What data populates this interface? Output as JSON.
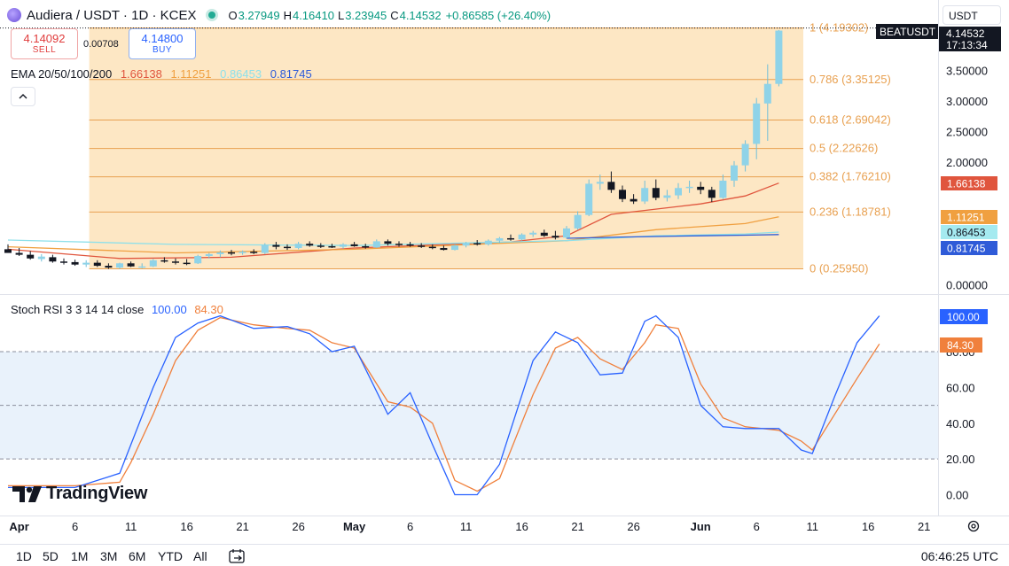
{
  "header": {
    "symbol_title": "Audiera / USDT · 1D · KCEX",
    "ohlc": [
      {
        "key": "O",
        "value": "3.27949"
      },
      {
        "key": "H",
        "value": "4.16410"
      },
      {
        "key": "L",
        "value": "3.23945"
      },
      {
        "key": "C",
        "value": "4.14532"
      }
    ],
    "change": "+0.86585 (+26.40%)",
    "currency": "USDT",
    "up_color": "#089981"
  },
  "trade": {
    "sell_price": "4.14092",
    "sell_label": "SELL",
    "spread": "0.00708",
    "buy_price": "4.14800",
    "buy_label": "BUY"
  },
  "ema_legend": {
    "label": "EMA 20/50/100/200",
    "values": [
      "1.66138",
      "1.11251",
      "0.86453",
      "0.81745"
    ],
    "colors": [
      "#e0553d",
      "#f0a040",
      "#8ee0ea",
      "#2f5bd8"
    ]
  },
  "price_axis": {
    "ticks": [
      "3.50000",
      "3.00000",
      "2.50000",
      "2.00000",
      "0.00000"
    ],
    "current_price": "4.14532",
    "countdown": "17:13:34",
    "symbol_label": "BEATUSDT",
    "ema_labels": [
      "1.66138",
      "1.11251",
      "0.86453",
      "0.81745"
    ]
  },
  "fib": {
    "levels": [
      {
        "ratio": 1,
        "price": 4.19302,
        "label": "1 (4.19302)"
      },
      {
        "ratio": 0.786,
        "price": 3.35125,
        "label": "0.786 (3.35125)"
      },
      {
        "ratio": 0.618,
        "price": 2.69042,
        "label": "0.618 (2.69042)"
      },
      {
        "ratio": 0.5,
        "price": 2.22626,
        "label": "0.5 (2.22626)"
      },
      {
        "ratio": 0.382,
        "price": 1.7621,
        "label": "0.382 (1.76210)"
      },
      {
        "ratio": 0.236,
        "price": 1.18781,
        "label": "0.236 (1.18781)"
      },
      {
        "ratio": 0,
        "price": 0.2595,
        "label": "0 (0.25950)"
      }
    ],
    "color": "#e8a050",
    "fill": "#fde7c4"
  },
  "rsi": {
    "label": "Stoch RSI 3 3 14 14 close",
    "k_value": "100.00",
    "d_value": "84.30",
    "k_color": "#2962ff",
    "d_color": "#f0803c",
    "ticks": [
      "80.00",
      "60.00",
      "40.00",
      "20.00",
      "0.00"
    ],
    "band_fill": "#e9f2fb"
  },
  "time_axis": {
    "labels": [
      "Apr",
      "6",
      "11",
      "16",
      "21",
      "26",
      "May",
      "6",
      "11",
      "16",
      "21",
      "26",
      "Jun",
      "6",
      "11",
      "16",
      "21"
    ]
  },
  "logo_text": "TradingView",
  "ranges": [
    "1D",
    "5D",
    "1M",
    "3M",
    "6M",
    "YTD",
    "All"
  ],
  "clock": "06:46:25 UTC",
  "chart_data": {
    "type": "candlestick",
    "title": "Audiera / USDT · 1D · KCEX",
    "x_start": "2025-03-31",
    "candles": [
      {
        "x": "2025-03-31",
        "o": 0.58,
        "h": 0.66,
        "l": 0.52,
        "c": 0.52
      },
      {
        "x": "2025-04-01",
        "o": 0.52,
        "h": 0.6,
        "l": 0.47,
        "c": 0.49
      },
      {
        "x": "2025-04-02",
        "o": 0.49,
        "h": 0.55,
        "l": 0.41,
        "c": 0.43
      },
      {
        "x": "2025-04-03",
        "o": 0.42,
        "h": 0.5,
        "l": 0.38,
        "c": 0.46
      },
      {
        "x": "2025-04-04",
        "o": 0.45,
        "h": 0.49,
        "l": 0.36,
        "c": 0.38
      },
      {
        "x": "2025-04-05",
        "o": 0.38,
        "h": 0.43,
        "l": 0.33,
        "c": 0.37
      },
      {
        "x": "2025-04-06",
        "o": 0.37,
        "h": 0.41,
        "l": 0.31,
        "c": 0.33
      },
      {
        "x": "2025-04-07",
        "o": 0.33,
        "h": 0.4,
        "l": 0.29,
        "c": 0.36
      },
      {
        "x": "2025-04-08",
        "o": 0.36,
        "h": 0.4,
        "l": 0.29,
        "c": 0.31
      },
      {
        "x": "2025-04-09",
        "o": 0.31,
        "h": 0.35,
        "l": 0.26,
        "c": 0.28
      },
      {
        "x": "2025-04-10",
        "o": 0.28,
        "h": 0.36,
        "l": 0.26,
        "c": 0.35
      },
      {
        "x": "2025-04-11",
        "o": 0.35,
        "h": 0.38,
        "l": 0.29,
        "c": 0.3
      },
      {
        "x": "2025-04-12",
        "o": 0.3,
        "h": 0.35,
        "l": 0.27,
        "c": 0.3
      },
      {
        "x": "2025-04-13",
        "o": 0.3,
        "h": 0.42,
        "l": 0.29,
        "c": 0.4
      },
      {
        "x": "2025-04-14",
        "o": 0.4,
        "h": 0.45,
        "l": 0.36,
        "c": 0.38
      },
      {
        "x": "2025-04-15",
        "o": 0.38,
        "h": 0.43,
        "l": 0.33,
        "c": 0.36
      },
      {
        "x": "2025-04-16",
        "o": 0.36,
        "h": 0.42,
        "l": 0.32,
        "c": 0.35
      },
      {
        "x": "2025-04-17",
        "o": 0.35,
        "h": 0.49,
        "l": 0.34,
        "c": 0.47
      },
      {
        "x": "2025-04-18",
        "o": 0.47,
        "h": 0.52,
        "l": 0.43,
        "c": 0.5
      },
      {
        "x": "2025-04-19",
        "o": 0.5,
        "h": 0.56,
        "l": 0.45,
        "c": 0.53
      },
      {
        "x": "2025-04-20",
        "o": 0.53,
        "h": 0.57,
        "l": 0.48,
        "c": 0.52
      },
      {
        "x": "2025-04-21",
        "o": 0.52,
        "h": 0.56,
        "l": 0.49,
        "c": 0.54
      },
      {
        "x": "2025-04-22",
        "o": 0.54,
        "h": 0.58,
        "l": 0.5,
        "c": 0.52
      },
      {
        "x": "2025-04-23",
        "o": 0.52,
        "h": 0.68,
        "l": 0.5,
        "c": 0.65
      },
      {
        "x": "2025-04-24",
        "o": 0.65,
        "h": 0.7,
        "l": 0.58,
        "c": 0.62
      },
      {
        "x": "2025-04-25",
        "o": 0.62,
        "h": 0.66,
        "l": 0.57,
        "c": 0.6
      },
      {
        "x": "2025-04-26",
        "o": 0.6,
        "h": 0.7,
        "l": 0.58,
        "c": 0.67
      },
      {
        "x": "2025-04-27",
        "o": 0.67,
        "h": 0.71,
        "l": 0.62,
        "c": 0.64
      },
      {
        "x": "2025-04-28",
        "o": 0.64,
        "h": 0.68,
        "l": 0.6,
        "c": 0.63
      },
      {
        "x": "2025-04-29",
        "o": 0.63,
        "h": 0.67,
        "l": 0.6,
        "c": 0.62
      },
      {
        "x": "2025-04-30",
        "o": 0.62,
        "h": 0.68,
        "l": 0.59,
        "c": 0.66
      },
      {
        "x": "2025-05-01",
        "o": 0.66,
        "h": 0.7,
        "l": 0.62,
        "c": 0.63
      },
      {
        "x": "2025-05-02",
        "o": 0.63,
        "h": 0.67,
        "l": 0.59,
        "c": 0.61
      },
      {
        "x": "2025-05-03",
        "o": 0.61,
        "h": 0.74,
        "l": 0.6,
        "c": 0.71
      },
      {
        "x": "2025-05-04",
        "o": 0.71,
        "h": 0.74,
        "l": 0.64,
        "c": 0.67
      },
      {
        "x": "2025-05-05",
        "o": 0.67,
        "h": 0.71,
        "l": 0.62,
        "c": 0.66
      },
      {
        "x": "2025-05-06",
        "o": 0.66,
        "h": 0.7,
        "l": 0.62,
        "c": 0.64
      },
      {
        "x": "2025-05-07",
        "o": 0.64,
        "h": 0.68,
        "l": 0.6,
        "c": 0.62
      },
      {
        "x": "2025-05-08",
        "o": 0.62,
        "h": 0.66,
        "l": 0.58,
        "c": 0.6
      },
      {
        "x": "2025-05-09",
        "o": 0.6,
        "h": 0.64,
        "l": 0.56,
        "c": 0.57
      },
      {
        "x": "2025-05-10",
        "o": 0.57,
        "h": 0.66,
        "l": 0.56,
        "c": 0.64
      },
      {
        "x": "2025-05-11",
        "o": 0.64,
        "h": 0.7,
        "l": 0.61,
        "c": 0.68
      },
      {
        "x": "2025-05-12",
        "o": 0.68,
        "h": 0.73,
        "l": 0.64,
        "c": 0.66
      },
      {
        "x": "2025-05-13",
        "o": 0.66,
        "h": 0.74,
        "l": 0.64,
        "c": 0.72
      },
      {
        "x": "2025-05-14",
        "o": 0.72,
        "h": 0.78,
        "l": 0.68,
        "c": 0.76
      },
      {
        "x": "2025-05-15",
        "o": 0.76,
        "h": 0.82,
        "l": 0.72,
        "c": 0.74
      },
      {
        "x": "2025-05-16",
        "o": 0.74,
        "h": 0.84,
        "l": 0.72,
        "c": 0.82
      },
      {
        "x": "2025-05-17",
        "o": 0.82,
        "h": 0.88,
        "l": 0.78,
        "c": 0.85
      },
      {
        "x": "2025-05-18",
        "o": 0.85,
        "h": 0.9,
        "l": 0.78,
        "c": 0.8
      },
      {
        "x": "2025-05-19",
        "o": 0.8,
        "h": 0.88,
        "l": 0.74,
        "c": 0.77
      },
      {
        "x": "2025-05-20",
        "o": 0.77,
        "h": 0.96,
        "l": 0.75,
        "c": 0.92
      },
      {
        "x": "2025-05-21",
        "o": 0.92,
        "h": 1.2,
        "l": 0.9,
        "c": 1.14
      },
      {
        "x": "2025-05-22",
        "o": 1.14,
        "h": 1.72,
        "l": 1.12,
        "c": 1.65
      },
      {
        "x": "2025-05-23",
        "o": 1.65,
        "h": 1.8,
        "l": 1.55,
        "c": 1.68
      },
      {
        "x": "2025-05-24",
        "o": 1.68,
        "h": 1.85,
        "l": 1.5,
        "c": 1.55
      },
      {
        "x": "2025-05-25",
        "o": 1.55,
        "h": 1.62,
        "l": 1.35,
        "c": 1.4
      },
      {
        "x": "2025-05-26",
        "o": 1.4,
        "h": 1.48,
        "l": 1.32,
        "c": 1.36
      },
      {
        "x": "2025-05-27",
        "o": 1.36,
        "h": 1.7,
        "l": 1.32,
        "c": 1.58
      },
      {
        "x": "2025-05-28",
        "o": 1.58,
        "h": 1.72,
        "l": 1.38,
        "c": 1.42
      },
      {
        "x": "2025-05-29",
        "o": 1.42,
        "h": 1.55,
        "l": 1.36,
        "c": 1.46
      },
      {
        "x": "2025-05-30",
        "o": 1.46,
        "h": 1.66,
        "l": 1.4,
        "c": 1.58
      },
      {
        "x": "2025-05-31",
        "o": 1.58,
        "h": 1.7,
        "l": 1.5,
        "c": 1.6
      },
      {
        "x": "2025-06-01",
        "o": 1.6,
        "h": 1.68,
        "l": 1.48,
        "c": 1.55
      },
      {
        "x": "2025-06-02",
        "o": 1.55,
        "h": 1.6,
        "l": 1.35,
        "c": 1.42
      },
      {
        "x": "2025-06-03",
        "o": 1.42,
        "h": 1.8,
        "l": 1.4,
        "c": 1.7
      },
      {
        "x": "2025-06-04",
        "o": 1.7,
        "h": 2.02,
        "l": 1.6,
        "c": 1.95
      },
      {
        "x": "2025-06-05",
        "o": 1.95,
        "h": 2.36,
        "l": 1.85,
        "c": 2.3
      },
      {
        "x": "2025-06-06",
        "o": 2.3,
        "h": 3.05,
        "l": 2.05,
        "c": 2.96
      },
      {
        "x": "2025-06-07",
        "o": 2.96,
        "h": 3.6,
        "l": 2.35,
        "c": 3.28
      },
      {
        "x": "2025-06-08",
        "o": 3.28,
        "h": 4.16,
        "l": 3.24,
        "c": 4.15
      }
    ],
    "ema": [
      {
        "name": "EMA 20",
        "color": "#e0553d",
        "points": [
          [
            "2025-03-31",
            0.58
          ],
          [
            "2025-04-10",
            0.43
          ],
          [
            "2025-04-20",
            0.45
          ],
          [
            "2025-05-01",
            0.6
          ],
          [
            "2025-05-15",
            0.7
          ],
          [
            "2025-05-20",
            0.8
          ],
          [
            "2025-05-24",
            1.15
          ],
          [
            "2025-06-01",
            1.32
          ],
          [
            "2025-06-05",
            1.45
          ],
          [
            "2025-06-08",
            1.66
          ]
        ]
      },
      {
        "name": "EMA 50",
        "color": "#f0a040",
        "points": [
          [
            "2025-03-31",
            0.62
          ],
          [
            "2025-04-15",
            0.52
          ],
          [
            "2025-05-01",
            0.58
          ],
          [
            "2025-05-20",
            0.72
          ],
          [
            "2025-05-28",
            0.9
          ],
          [
            "2025-06-05",
            1.0
          ],
          [
            "2025-06-08",
            1.11
          ]
        ]
      },
      {
        "name": "EMA 100",
        "color": "#8ee0ea",
        "points": [
          [
            "2025-03-31",
            0.73
          ],
          [
            "2025-04-15",
            0.66
          ],
          [
            "2025-05-01",
            0.64
          ],
          [
            "2025-05-20",
            0.72
          ],
          [
            "2025-05-28",
            0.8
          ],
          [
            "2025-06-05",
            0.83
          ],
          [
            "2025-06-08",
            0.86
          ]
        ]
      },
      {
        "name": "EMA 200",
        "color": "#2f5bd8",
        "points": [
          [
            "2025-05-20",
            0.76
          ],
          [
            "2025-05-25",
            0.78
          ],
          [
            "2025-06-01",
            0.8
          ],
          [
            "2025-06-05",
            0.81
          ],
          [
            "2025-06-08",
            0.82
          ]
        ]
      }
    ],
    "stoch_rsi": {
      "k": [
        [
          "2025-03-31",
          4
        ],
        [
          "2025-04-06",
          4
        ],
        [
          "2025-04-10",
          12
        ],
        [
          "2025-04-11",
          28
        ],
        [
          "2025-04-13",
          60
        ],
        [
          "2025-04-15",
          88
        ],
        [
          "2025-04-17",
          96
        ],
        [
          "2025-04-19",
          100
        ],
        [
          "2025-04-22",
          93
        ],
        [
          "2025-04-25",
          94
        ],
        [
          "2025-04-27",
          90
        ],
        [
          "2025-04-29",
          80
        ],
        [
          "2025-05-01",
          83
        ],
        [
          "2025-05-04",
          45
        ],
        [
          "2025-05-06",
          57
        ],
        [
          "2025-05-08",
          28
        ],
        [
          "2025-05-10",
          0
        ],
        [
          "2025-05-12",
          0
        ],
        [
          "2025-05-14",
          17
        ],
        [
          "2025-05-17",
          75
        ],
        [
          "2025-05-19",
          91
        ],
        [
          "2025-05-21",
          85
        ],
        [
          "2025-05-23",
          67
        ],
        [
          "2025-05-25",
          68
        ],
        [
          "2025-05-27",
          97
        ],
        [
          "2025-05-28",
          100
        ],
        [
          "2025-05-30",
          88
        ],
        [
          "2025-06-01",
          50
        ],
        [
          "2025-06-03",
          38
        ],
        [
          "2025-06-05",
          37
        ],
        [
          "2025-06-08",
          37
        ],
        [
          "2025-06-10",
          25
        ],
        [
          "2025-06-11",
          23
        ],
        [
          "2025-06-13",
          55
        ],
        [
          "2025-06-15",
          85
        ],
        [
          "2025-06-17",
          100
        ]
      ],
      "d": [
        [
          "2025-03-31",
          5
        ],
        [
          "2025-04-06",
          5
        ],
        [
          "2025-04-10",
          7
        ],
        [
          "2025-04-11",
          18
        ],
        [
          "2025-04-13",
          45
        ],
        [
          "2025-04-15",
          75
        ],
        [
          "2025-04-17",
          92
        ],
        [
          "2025-04-19",
          99
        ],
        [
          "2025-04-22",
          95
        ],
        [
          "2025-04-25",
          93
        ],
        [
          "2025-04-27",
          92
        ],
        [
          "2025-04-29",
          85
        ],
        [
          "2025-05-01",
          82
        ],
        [
          "2025-05-04",
          52
        ],
        [
          "2025-05-06",
          49
        ],
        [
          "2025-05-08",
          40
        ],
        [
          "2025-05-10",
          8
        ],
        [
          "2025-05-12",
          2
        ],
        [
          "2025-05-14",
          9
        ],
        [
          "2025-05-17",
          56
        ],
        [
          "2025-05-19",
          82
        ],
        [
          "2025-05-21",
          88
        ],
        [
          "2025-05-23",
          76
        ],
        [
          "2025-05-25",
          70
        ],
        [
          "2025-05-27",
          85
        ],
        [
          "2025-05-28",
          95
        ],
        [
          "2025-05-30",
          93
        ],
        [
          "2025-06-01",
          62
        ],
        [
          "2025-06-03",
          43
        ],
        [
          "2025-06-05",
          38
        ],
        [
          "2025-06-08",
          36
        ],
        [
          "2025-06-10",
          30
        ],
        [
          "2025-06-11",
          25
        ],
        [
          "2025-06-13",
          45
        ],
        [
          "2025-06-15",
          65
        ],
        [
          "2025-06-17",
          84.3
        ]
      ]
    },
    "price_ylim": [
      0,
      4.2
    ],
    "rsi_ylim": [
      0,
      100
    ],
    "grid": false
  }
}
